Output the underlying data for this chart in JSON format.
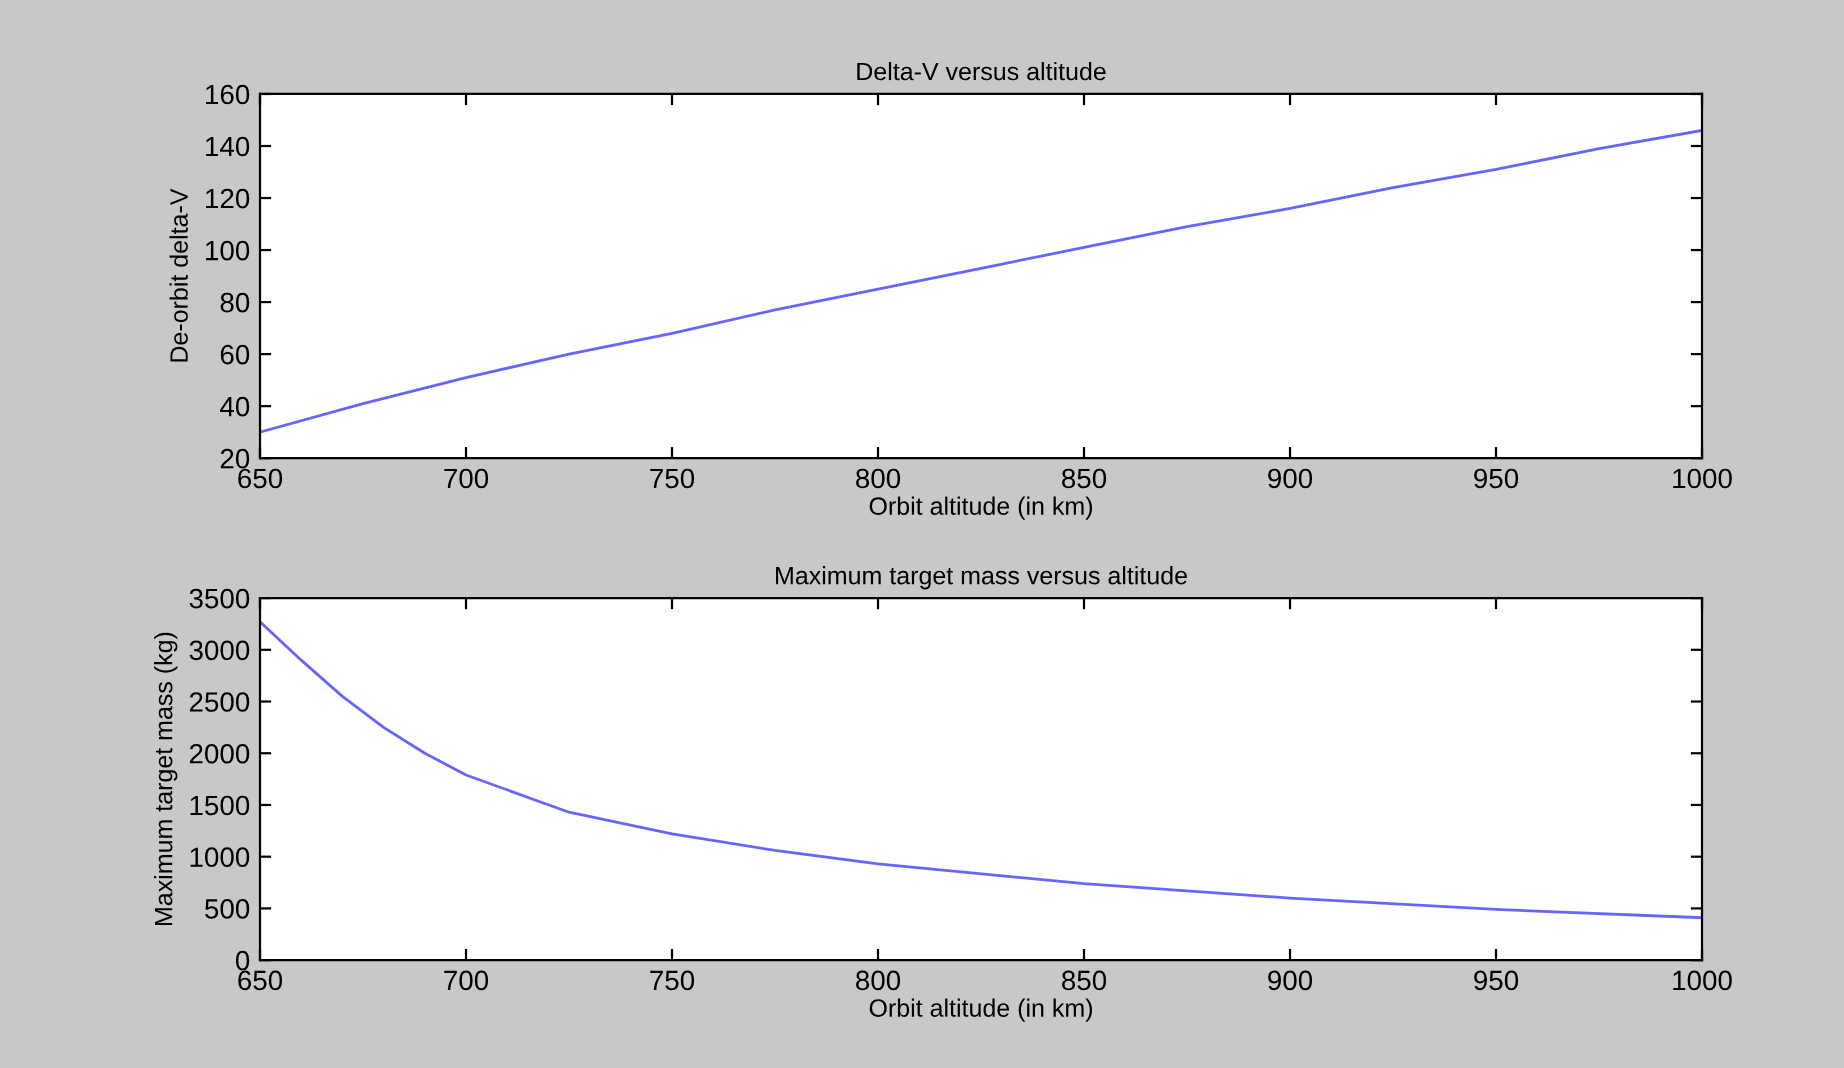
{
  "chart_data": [
    {
      "type": "line",
      "title": "Delta-V versus altitude",
      "xlabel": "Orbit altitude (in km)",
      "ylabel": "De-orbit delta-V",
      "x": [
        650,
        675,
        700,
        725,
        750,
        775,
        800,
        825,
        850,
        875,
        900,
        925,
        950,
        975,
        1000
      ],
      "series": [
        {
          "color": "#6666ff",
          "values": [
            30,
            41,
            51,
            60,
            68,
            77,
            85,
            93,
            101,
            109,
            116,
            124,
            131,
            139,
            146
          ]
        }
      ],
      "xlim": [
        650,
        1000
      ],
      "xticks": [
        650,
        700,
        750,
        800,
        850,
        900,
        950,
        1000
      ],
      "ylim": [
        20,
        160
      ],
      "yticks": [
        20,
        40,
        60,
        80,
        100,
        120,
        140,
        160
      ],
      "grid": false,
      "legend": false
    },
    {
      "type": "line",
      "title": "Maximum target mass versus altitude",
      "xlabel": "Orbit altitude (in km)",
      "ylabel": "Maximum target mass (kg)",
      "x": [
        650,
        660,
        670,
        680,
        690,
        700,
        725,
        750,
        775,
        800,
        850,
        900,
        950,
        1000
      ],
      "series": [
        {
          "color": "#6666ff",
          "values": [
            3270,
            2900,
            2550,
            2250,
            2000,
            1790,
            1430,
            1220,
            1060,
            930,
            740,
            600,
            490,
            410
          ]
        }
      ],
      "xlim": [
        650,
        1000
      ],
      "xticks": [
        650,
        700,
        750,
        800,
        850,
        900,
        950,
        1000
      ],
      "ylim": [
        0,
        3500
      ],
      "yticks": [
        0,
        500,
        1000,
        1500,
        2000,
        2500,
        3000,
        3500
      ],
      "grid": false,
      "legend": false
    }
  ]
}
